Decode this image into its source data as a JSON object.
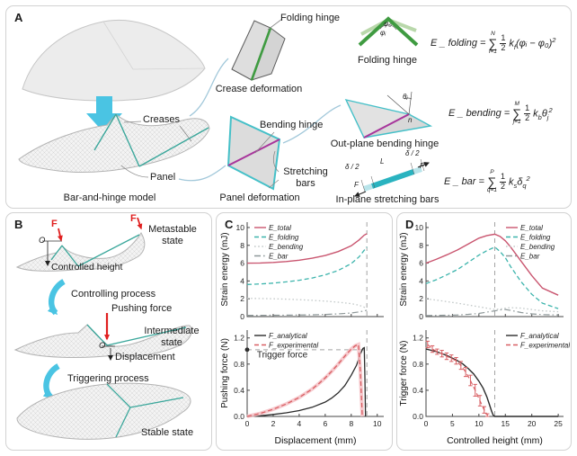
{
  "colors": {
    "accent_cyan": "#4ac4e3",
    "crease_teal": "#3aa79b",
    "hinge_green": "#3f9b41",
    "light_green": "#b9d8ab",
    "bending_magenta": "#a8359b",
    "bar_cyan": "#2ab3c0",
    "arrow_red": "#e02020",
    "e_total": "#c9556f",
    "e_folding": "#3cb4ac",
    "e_bending": "#c3c9c9",
    "e_bar": "#8e9899",
    "f_analytical": "#2b2b2b",
    "f_experimental": "#d85f63"
  },
  "panels": {
    "a": {
      "label": "A",
      "creases": "Creases",
      "panel": "Panel",
      "model_caption": "Bar-and-hinge model",
      "crease_def": "Crease deformation",
      "folding_hinge_ptr": "Folding hinge",
      "panel_def": "Panel deformation",
      "bending_hinge": "Bending hinge",
      "stretching_bars": "Stretching bars",
      "folding_hinge_caption": "Folding hinge",
      "outplane_caption": "Out-plane bending hinge",
      "inplane_caption": "In-plane stretching bars",
      "phi0": "φ₀",
      "phii": "φᵢ",
      "theta": "θⱼ",
      "n": "n",
      "delta_half": "δ / 2",
      "L": "L",
      "F": "F",
      "eq_folding": {
        "lhs": "E _ folding",
        "eq": "=",
        "upper": "N",
        "lower": "i=1",
        "num": "1",
        "den": "2",
        "k": "k",
        "ksub": "f",
        "arg": "(φᵢ − φ₀)",
        "argsub": "",
        "pow": "2"
      },
      "eq_bending": {
        "lhs": "E _ bending",
        "eq": "=",
        "upper": "M",
        "lower": "j=1",
        "num": "1",
        "den": "2",
        "k": "k",
        "ksub": "b",
        "arg": "θ",
        "argsub": "j",
        "pow": "2"
      },
      "eq_bar": {
        "lhs": "E _ bar",
        "eq": "=",
        "upper": "P",
        "lower": "q=1",
        "num": "1",
        "den": "2",
        "k": "k",
        "ksub": "s",
        "arg": "δ",
        "argsub": "q",
        "pow": "2"
      }
    },
    "b": {
      "label": "B",
      "f": "F",
      "o": "O",
      "controlled_height": "Controlled height",
      "metastable": "Metastable state",
      "controlling": "Controlling process",
      "pushing_force": "Pushing force",
      "intermediate": "Intermediate state",
      "displacement": "Displacement",
      "triggering": "Triggering process",
      "stable": "Stable state"
    },
    "c": {
      "label": "C"
    },
    "d": {
      "label": "D"
    }
  },
  "chart_data": [
    {
      "type": "line",
      "name": "strain-energy-vs-displacement",
      "title": "",
      "ylabel": "Strain energy (mJ)",
      "xlabel": "",
      "xlim": [
        0,
        10.5
      ],
      "ylim": [
        0,
        10.6
      ],
      "xticks": [
        0,
        2,
        4,
        6,
        8,
        10
      ],
      "xtick_labels": [],
      "yticks": [
        0,
        2,
        4,
        6,
        8,
        10
      ],
      "ytick_labels": [
        "0",
        "2",
        "4",
        "6",
        "8",
        "10"
      ],
      "vline": 9.2,
      "legend_pos": "top-left",
      "series": [
        {
          "name": "E_total",
          "color": "#c9556f",
          "dash": "solid",
          "width": 1.4,
          "x": [
            0,
            1,
            2,
            3,
            4,
            5,
            6,
            7,
            8,
            8.6,
            9,
            9.2
          ],
          "y": [
            6.0,
            6.02,
            6.08,
            6.18,
            6.33,
            6.55,
            6.85,
            7.3,
            7.95,
            8.6,
            9.15,
            9.3
          ]
        },
        {
          "name": "E_folding",
          "color": "#3cb4ac",
          "dash": "dashed",
          "width": 1.3,
          "x": [
            0,
            1,
            2,
            3,
            4,
            5,
            6,
            7,
            8,
            8.6,
            9,
            9.2
          ],
          "y": [
            3.6,
            3.66,
            3.76,
            3.9,
            4.08,
            4.33,
            4.68,
            5.18,
            5.95,
            6.7,
            7.45,
            7.8
          ]
        },
        {
          "name": "E_bending",
          "color": "#c3c9c9",
          "dash": "dotted",
          "width": 1.3,
          "x": [
            0,
            1,
            2,
            3,
            4,
            5,
            6,
            7,
            8,
            8.6,
            9,
            9.2
          ],
          "y": [
            2.05,
            2.03,
            2.0,
            1.96,
            1.9,
            1.83,
            1.74,
            1.62,
            1.45,
            1.28,
            1.05,
            0.9
          ]
        },
        {
          "name": "E_bar",
          "color": "#8e9899",
          "dash": "dashdot",
          "width": 1.2,
          "x": [
            0,
            1,
            2,
            3,
            4,
            5,
            6,
            7,
            8,
            8.6,
            9,
            9.2
          ],
          "y": [
            0.14,
            0.14,
            0.15,
            0.16,
            0.18,
            0.2,
            0.24,
            0.3,
            0.4,
            0.52,
            0.65,
            0.72
          ]
        }
      ]
    },
    {
      "type": "line",
      "name": "pushing-force-vs-displacement",
      "title": "",
      "ylabel": "Pushing force (N)",
      "xlabel": "Displacement (mm)",
      "xlim": [
        0,
        10.5
      ],
      "ylim": [
        0,
        1.32
      ],
      "xticks": [
        0,
        2,
        4,
        6,
        8,
        10
      ],
      "xtick_labels": [
        "0",
        "2",
        "4",
        "6",
        "8",
        "10"
      ],
      "yticks": [
        0,
        0.4,
        0.8,
        1.2
      ],
      "ytick_labels": [
        "0.0",
        "0.4",
        "0.8",
        "1.2"
      ],
      "vline": 9.2,
      "legend_pos": "top-left",
      "annotations": [
        {
          "type": "hline",
          "y": 1.02,
          "x1": 0,
          "x2": 9.2
        },
        {
          "type": "dot",
          "x": 0,
          "y": 1.02
        },
        {
          "type": "text",
          "x": 0.75,
          "y": 0.9,
          "label": "Trigger force"
        }
      ],
      "series": [
        {
          "name": "F_analytical",
          "color": "#2b2b2b",
          "dash": "solid",
          "width": 1.3,
          "x": [
            0,
            1,
            2,
            3,
            4,
            5,
            6,
            6.5,
            7,
            7.5,
            8,
            8.4,
            8.7,
            8.9,
            9.0,
            9.05,
            9.1
          ],
          "y": [
            0,
            0.01,
            0.03,
            0.055,
            0.09,
            0.14,
            0.22,
            0.28,
            0.36,
            0.47,
            0.63,
            0.78,
            0.95,
            1.04,
            1.05,
            0.6,
            0
          ]
        },
        {
          "name": "F_experimental",
          "color": "#d85f63",
          "dash": "dashed",
          "width": 1.3,
          "band": "#f5bfc4",
          "x": [
            0,
            1,
            2,
            3,
            4,
            5,
            5.5,
            6,
            6.5,
            7,
            7.5,
            8,
            8.3,
            8.55,
            8.7,
            8.85
          ],
          "y": [
            0,
            0.045,
            0.11,
            0.19,
            0.29,
            0.42,
            0.5,
            0.59,
            0.69,
            0.8,
            0.92,
            1.03,
            1.08,
            1.1,
            0.7,
            0
          ]
        }
      ]
    },
    {
      "type": "line",
      "name": "strain-energy-vs-controlled-height",
      "title": "",
      "ylabel": "Strain energy (mJ)",
      "xlabel": "",
      "xlim": [
        0,
        26
      ],
      "ylim": [
        0,
        10.6
      ],
      "xticks": [
        0,
        5,
        10,
        15,
        20,
        25
      ],
      "xtick_labels": [],
      "yticks": [
        0,
        2,
        4,
        6,
        8,
        10
      ],
      "ytick_labels": [
        "0",
        "2",
        "4",
        "6",
        "8",
        "10"
      ],
      "vline": 13,
      "legend_pos": "top-right",
      "series": [
        {
          "name": "E_total",
          "color": "#c9556f",
          "dash": "solid",
          "width": 1.4,
          "x": [
            0,
            2,
            4,
            6,
            8,
            10,
            11.5,
            13,
            14,
            15,
            16,
            18,
            20,
            22,
            25
          ],
          "y": [
            6.0,
            6.45,
            6.95,
            7.5,
            8.15,
            8.8,
            9.1,
            9.25,
            9.0,
            8.5,
            7.8,
            6.2,
            4.6,
            3.2,
            2.4
          ]
        },
        {
          "name": "E_folding",
          "color": "#3cb4ac",
          "dash": "dashed",
          "width": 1.3,
          "x": [
            0,
            2,
            4,
            6,
            8,
            10,
            11.5,
            13,
            14,
            15,
            16,
            18,
            20,
            22,
            25
          ],
          "y": [
            3.7,
            4.15,
            4.7,
            5.3,
            6.1,
            6.9,
            7.4,
            7.8,
            7.3,
            6.6,
            5.6,
            3.9,
            2.5,
            1.5,
            0.9
          ]
        },
        {
          "name": "E_bending",
          "color": "#c3c9c9",
          "dash": "dotted",
          "width": 1.3,
          "x": [
            0,
            2,
            4,
            6,
            8,
            10,
            11.5,
            13,
            14,
            15,
            16,
            18,
            20,
            22,
            25
          ],
          "y": [
            2.0,
            1.85,
            1.68,
            1.5,
            1.3,
            1.1,
            0.95,
            0.8,
            0.85,
            0.95,
            1.0,
            0.95,
            0.8,
            0.65,
            0.55
          ]
        },
        {
          "name": "E_bar",
          "color": "#8e9899",
          "dash": "dashdot",
          "width": 1.2,
          "x": [
            0,
            2,
            4,
            6,
            8,
            10,
            11.5,
            13,
            14,
            15,
            16,
            18,
            20,
            22,
            25
          ],
          "y": [
            0.12,
            0.13,
            0.15,
            0.18,
            0.25,
            0.35,
            0.5,
            0.65,
            0.75,
            0.8,
            0.7,
            0.45,
            0.3,
            0.22,
            0.18
          ]
        }
      ]
    },
    {
      "type": "line",
      "name": "trigger-force-vs-controlled-height",
      "title": "",
      "ylabel": "Trigger force (N)",
      "xlabel": "Controlled height (mm)",
      "xlim": [
        0,
        26
      ],
      "ylim": [
        0,
        1.32
      ],
      "xticks": [
        0,
        5,
        10,
        15,
        20,
        25
      ],
      "xtick_labels": [
        "0",
        "5",
        "10",
        "15",
        "20",
        "25"
      ],
      "yticks": [
        0,
        0.4,
        0.8,
        1.2
      ],
      "ytick_labels": [
        "0.0",
        "0.4",
        "0.8",
        "1.2"
      ],
      "vline": 13,
      "legend_pos": "top-right",
      "series": [
        {
          "name": "F_analytical",
          "color": "#2b2b2b",
          "dash": "solid",
          "width": 1.4,
          "x": [
            0,
            1,
            2,
            3,
            4,
            5,
            6,
            7,
            8,
            9,
            10,
            10.8,
            11.5,
            12,
            12.4,
            12.7,
            13,
            15,
            20,
            25
          ],
          "y": [
            1.03,
            1.01,
            0.99,
            0.96,
            0.93,
            0.89,
            0.85,
            0.8,
            0.73,
            0.65,
            0.54,
            0.43,
            0.3,
            0.18,
            0.08,
            0.02,
            0,
            0,
            0,
            0
          ]
        },
        {
          "name": "F_experimental",
          "color": "#d85f63",
          "dash": "dashed",
          "width": 1.2,
          "x": [
            0.3,
            1.2,
            2.1,
            3,
            3.9,
            4.8,
            5.7,
            6.6,
            7.5,
            8.4,
            9.3,
            10.2,
            11,
            11.6
          ],
          "y": [
            1.1,
            1.03,
            0.99,
            0.96,
            0.92,
            0.89,
            0.85,
            0.78,
            0.68,
            0.55,
            0.4,
            0.24,
            0.1,
            0.02
          ],
          "yerr": [
            0.05,
            0.05,
            0.04,
            0.05,
            0.05,
            0.05,
            0.05,
            0.06,
            0.07,
            0.08,
            0.09,
            0.08,
            0.05,
            0.02
          ]
        }
      ]
    }
  ]
}
